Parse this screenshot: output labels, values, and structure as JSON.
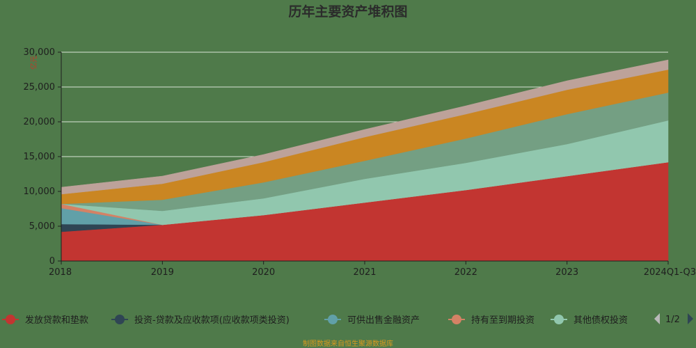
{
  "chart_data": {
    "type": "area",
    "stacked": true,
    "title": "历年主要资产堆积图",
    "y_unit": "亿元",
    "x": [
      "2018",
      "2019",
      "2020",
      "2021",
      "2022",
      "2023",
      "2024Q1-Q3"
    ],
    "ylim": [
      0,
      30000
    ],
    "y_ticks": [
      0,
      5000,
      10000,
      15000,
      20000,
      25000,
      30000
    ],
    "y_tick_labels": [
      "0",
      "5,000",
      "10,000",
      "15,000",
      "20,000",
      "25,000",
      "30,000"
    ],
    "grid": true,
    "legend_position": "bottom",
    "series": [
      {
        "name": "发放贷款和垫款",
        "color": "#c23531",
        "values": [
          4200,
          5200,
          6600,
          8400,
          10200,
          12200,
          14200
        ]
      },
      {
        "name": "投资-贷款及应收款项(应收款项类投资)",
        "color": "#2f4554",
        "values": [
          1100,
          0,
          0,
          0,
          0,
          0,
          0
        ]
      },
      {
        "name": "可供出售金融资产",
        "color": "#61a0a8",
        "values": [
          2300,
          0,
          0,
          0,
          0,
          0,
          0
        ]
      },
      {
        "name": "持有至到期投资",
        "color": "#d48265",
        "values": [
          600,
          0,
          0,
          0,
          0,
          0,
          0
        ]
      },
      {
        "name": "其他债权投资",
        "color": "#91c7ae",
        "values": [
          0,
          2000,
          2400,
          3400,
          3900,
          4600,
          6000
        ]
      },
      {
        "name": "",
        "color": "#749f83",
        "values": [
          0,
          1600,
          2300,
          2600,
          3500,
          4300,
          4000
        ]
      },
      {
        "name": "",
        "color": "#ca8622",
        "values": [
          1400,
          2300,
          2900,
          3400,
          3500,
          3500,
          3300
        ]
      },
      {
        "name": "",
        "color": "#bda29a",
        "values": [
          1000,
          1100,
          1100,
          1100,
          1200,
          1300,
          1400
        ]
      }
    ]
  },
  "legend": {
    "visible_count": 5,
    "page_label": "1/2"
  },
  "source_text": "制图数据来自恒生聚源数据库"
}
